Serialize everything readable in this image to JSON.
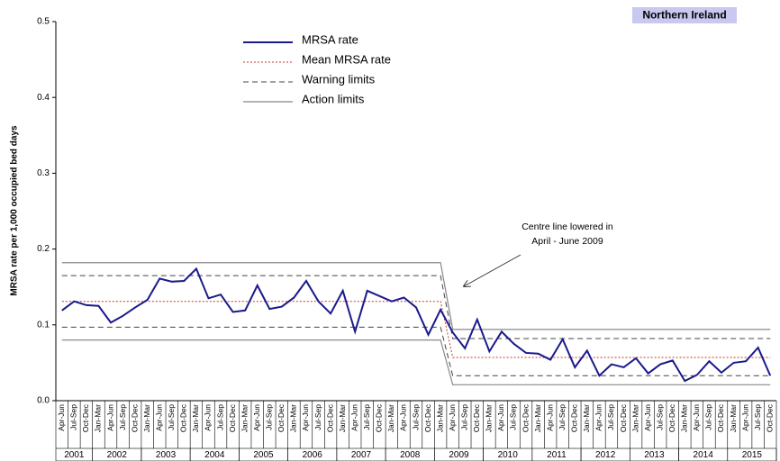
{
  "chart_data": {
    "type": "line",
    "badge": "Northern Ireland",
    "y_label": "MRSA rate per 1,000 occupied bed days",
    "annotation": [
      "Centre line lowered in",
      "April - June 2009"
    ],
    "ylim": [
      0,
      0.5
    ],
    "yticks": [
      {
        "value": 0,
        "label": "0.0"
      },
      0.1,
      0.2,
      0.3,
      0.4,
      0.5
    ],
    "years": [
      "2001",
      "2002",
      "2003",
      "2004",
      "2005",
      "2006",
      "2007",
      "2008",
      "2009",
      "2010",
      "2011",
      "2012",
      "2013",
      "2014",
      "2015"
    ],
    "categories": [
      "Apr-Jun",
      "Jul-Sep",
      "Oct-Dec",
      "Jan-Mar",
      "Apr-Jun",
      "Jul-Sep",
      "Oct-Dec",
      "Jan-Mar",
      "Apr-Jun",
      "Jul-Sep",
      "Oct-Dec",
      "Jan-Mar",
      "Apr-Jun",
      "Jul-Sep",
      "Oct-Dec",
      "Jan-Mar",
      "Apr-Jun",
      "Jul-Sep",
      "Oct-Dec",
      "Jan-Mar",
      "Apr-Jun",
      "Jul-Sep",
      "Oct-Dec",
      "Jan-Mar",
      "Apr-Jun",
      "Jul-Sep",
      "Oct-Dec",
      "Jan-Mar",
      "Apr-Jun",
      "Jul-Sep",
      "Oct-Dec",
      "Jan-Mar",
      "Apr-Jun",
      "Jul-Sep",
      "Oct-Dec",
      "Jan-Mar",
      "Apr-Jun",
      "Jul-Sep",
      "Oct-Dec",
      "Jan-Mar",
      "Apr-Jun",
      "Jul-Sep",
      "Oct-Dec",
      "Jan-Mar",
      "Apr-Jun",
      "Jul-Sep",
      "Oct-Dec",
      "Jan-Mar",
      "Apr-Jun",
      "Jul-Sep",
      "Oct-Dec",
      "Jan-Mar",
      "Apr-Jun",
      "Jul-Sep",
      "Oct-Dec",
      "Jan-Mar",
      "Apr-Jun",
      "Jul-Sep",
      "Oct-Dec"
    ],
    "series": [
      {
        "name": "MRSA rate",
        "color": "#1a1a8c",
        "style": "solid",
        "width": 2,
        "values": [
          0.119,
          0.131,
          0.126,
          0.125,
          0.103,
          0.112,
          0.123,
          0.133,
          0.161,
          0.157,
          0.158,
          0.174,
          0.135,
          0.14,
          0.117,
          0.119,
          0.152,
          0.121,
          0.124,
          0.136,
          0.158,
          0.131,
          0.115,
          0.145,
          0.091,
          0.145,
          0.138,
          0.131,
          0.136,
          0.123,
          0.087,
          0.12,
          0.09,
          0.069,
          0.107,
          0.065,
          0.091,
          0.075,
          0.063,
          0.062,
          0.054,
          0.081,
          0.044,
          0.066,
          0.033,
          0.048,
          0.044,
          0.056,
          0.036,
          0.048,
          0.053,
          0.026,
          0.034,
          0.052,
          0.037,
          0.05,
          0.052,
          0.07,
          0.033
        ]
      },
      {
        "name": "Mean MRSA rate",
        "color": "#c0392b",
        "style": "dotted",
        "width": 1,
        "values": [
          0.131,
          0.131,
          0.131,
          0.131,
          0.131,
          0.131,
          0.131,
          0.131,
          0.131,
          0.131,
          0.131,
          0.131,
          0.131,
          0.131,
          0.131,
          0.131,
          0.131,
          0.131,
          0.131,
          0.131,
          0.131,
          0.131,
          0.131,
          0.131,
          0.131,
          0.131,
          0.131,
          0.131,
          0.131,
          0.131,
          0.131,
          0.131,
          0.057,
          0.057,
          0.057,
          0.057,
          0.057,
          0.057,
          0.057,
          0.057,
          0.057,
          0.057,
          0.057,
          0.057,
          0.057,
          0.057,
          0.057,
          0.057,
          0.057,
          0.057,
          0.057,
          0.057,
          0.057,
          0.057,
          0.057,
          0.057,
          0.057,
          0.057,
          0.057
        ]
      },
      {
        "name": "Warning limits",
        "color": "#444444",
        "style": "dashed",
        "width": 1,
        "values": [
          0.165,
          0.165,
          0.165,
          0.165,
          0.165,
          0.165,
          0.165,
          0.165,
          0.165,
          0.165,
          0.165,
          0.165,
          0.165,
          0.165,
          0.165,
          0.165,
          0.165,
          0.165,
          0.165,
          0.165,
          0.165,
          0.165,
          0.165,
          0.165,
          0.165,
          0.165,
          0.165,
          0.165,
          0.165,
          0.165,
          0.165,
          0.165,
          0.082,
          0.082,
          0.082,
          0.082,
          0.082,
          0.082,
          0.082,
          0.082,
          0.082,
          0.082,
          0.082,
          0.082,
          0.082,
          0.082,
          0.082,
          0.082,
          0.082,
          0.082,
          0.082,
          0.082,
          0.082,
          0.082,
          0.082,
          0.082,
          0.082,
          0.082,
          0.082
        ],
        "lower": [
          0.097,
          0.097,
          0.097,
          0.097,
          0.097,
          0.097,
          0.097,
          0.097,
          0.097,
          0.097,
          0.097,
          0.097,
          0.097,
          0.097,
          0.097,
          0.097,
          0.097,
          0.097,
          0.097,
          0.097,
          0.097,
          0.097,
          0.097,
          0.097,
          0.097,
          0.097,
          0.097,
          0.097,
          0.097,
          0.097,
          0.097,
          0.097,
          0.033,
          0.033,
          0.033,
          0.033,
          0.033,
          0.033,
          0.033,
          0.033,
          0.033,
          0.033,
          0.033,
          0.033,
          0.033,
          0.033,
          0.033,
          0.033,
          0.033,
          0.033,
          0.033,
          0.033,
          0.033,
          0.033,
          0.033,
          0.033,
          0.033,
          0.033,
          0.033
        ]
      },
      {
        "name": "Action limits",
        "color": "#888888",
        "style": "solid",
        "width": 1.2,
        "values": [
          0.182,
          0.182,
          0.182,
          0.182,
          0.182,
          0.182,
          0.182,
          0.182,
          0.182,
          0.182,
          0.182,
          0.182,
          0.182,
          0.182,
          0.182,
          0.182,
          0.182,
          0.182,
          0.182,
          0.182,
          0.182,
          0.182,
          0.182,
          0.182,
          0.182,
          0.182,
          0.182,
          0.182,
          0.182,
          0.182,
          0.182,
          0.182,
          0.094,
          0.094,
          0.094,
          0.094,
          0.094,
          0.094,
          0.094,
          0.094,
          0.094,
          0.094,
          0.094,
          0.094,
          0.094,
          0.094,
          0.094,
          0.094,
          0.094,
          0.094,
          0.094,
          0.094,
          0.094,
          0.094,
          0.094,
          0.094,
          0.094,
          0.094,
          0.094
        ],
        "lower": [
          0.08,
          0.08,
          0.08,
          0.08,
          0.08,
          0.08,
          0.08,
          0.08,
          0.08,
          0.08,
          0.08,
          0.08,
          0.08,
          0.08,
          0.08,
          0.08,
          0.08,
          0.08,
          0.08,
          0.08,
          0.08,
          0.08,
          0.08,
          0.08,
          0.08,
          0.08,
          0.08,
          0.08,
          0.08,
          0.08,
          0.08,
          0.08,
          0.021,
          0.021,
          0.021,
          0.021,
          0.021,
          0.021,
          0.021,
          0.021,
          0.021,
          0.021,
          0.021,
          0.021,
          0.021,
          0.021,
          0.021,
          0.021,
          0.021,
          0.021,
          0.021,
          0.021,
          0.021,
          0.021,
          0.021,
          0.021,
          0.021,
          0.021,
          0.021
        ]
      }
    ]
  }
}
